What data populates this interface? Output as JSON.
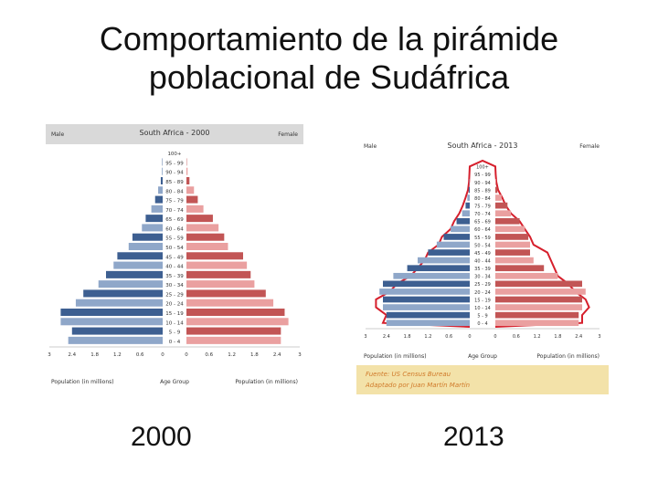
{
  "slide": {
    "title_line1": "Comportamiento de la pirámide",
    "title_line2": "poblacional de Sudáfrica",
    "caption_left": "2000",
    "caption_right": "2013"
  },
  "colors": {
    "male_light": "#8fa7c9",
    "male_dark": "#3d5f91",
    "female_light": "#eaa0a0",
    "female_dark": "#c25555",
    "outline": "#d61f2c",
    "header_bg": "#d9d9d9",
    "source_bg": "#f3e2a9",
    "source_text": "#d07a2a"
  },
  "chart_data": [
    {
      "type": "bar",
      "subtype": "population-pyramid",
      "title": "South Africa - 2000",
      "left_label": "Male",
      "right_label": "Female",
      "age_groups": [
        "0 - 4",
        "5 - 9",
        "10 - 14",
        "15 - 19",
        "20 - 24",
        "25 - 29",
        "30 - 34",
        "35 - 39",
        "40 - 44",
        "45 - 49",
        "50 - 54",
        "55 - 59",
        "60 - 64",
        "65 - 69",
        "70 - 74",
        "75 - 79",
        "80 - 84",
        "85 - 89",
        "90 - 94",
        "95 - 99",
        "100+"
      ],
      "series": [
        {
          "name": "Male",
          "values": [
            2.5,
            2.4,
            2.7,
            2.7,
            2.3,
            2.1,
            1.7,
            1.5,
            1.3,
            1.2,
            0.9,
            0.8,
            0.55,
            0.45,
            0.3,
            0.2,
            0.12,
            0.05,
            0.02,
            0.01,
            0.0
          ]
        },
        {
          "name": "Female",
          "values": [
            2.5,
            2.5,
            2.7,
            2.6,
            2.3,
            2.1,
            1.8,
            1.7,
            1.6,
            1.5,
            1.1,
            1.0,
            0.85,
            0.7,
            0.45,
            0.3,
            0.2,
            0.08,
            0.03,
            0.01,
            0.0
          ]
        }
      ],
      "xticks_left": [
        "3",
        "2.4",
        "1.8",
        "1.2",
        "0.6",
        "0"
      ],
      "xticks_right": [
        "0",
        "0.6",
        "1.2",
        "1.8",
        "2.4",
        "3"
      ],
      "xlim": [
        0,
        3
      ],
      "xlabel_left": "Population (in millions)",
      "xlabel_center": "Age Group",
      "xlabel_right": "Population (in millions)"
    },
    {
      "type": "bar",
      "subtype": "population-pyramid",
      "title": "South Africa - 2013",
      "left_label": "Male",
      "right_label": "Female",
      "age_groups": [
        "0 - 4",
        "5 - 9",
        "10 - 14",
        "15 - 19",
        "20 - 24",
        "25 - 29",
        "30 - 34",
        "35 - 39",
        "40 - 44",
        "45 - 49",
        "50 - 54",
        "55 - 59",
        "60 - 64",
        "65 - 69",
        "70 - 74",
        "75 - 79",
        "80 - 84",
        "85 - 89",
        "90 - 94",
        "95 - 99",
        "100+"
      ],
      "series": [
        {
          "name": "Male",
          "values": [
            2.4,
            2.4,
            2.5,
            2.5,
            2.6,
            2.5,
            2.2,
            1.8,
            1.5,
            1.2,
            0.95,
            0.75,
            0.55,
            0.38,
            0.22,
            0.12,
            0.07,
            0.03,
            0.01,
            0.0,
            0.0
          ]
        },
        {
          "name": "Female",
          "values": [
            2.4,
            2.4,
            2.5,
            2.5,
            2.6,
            2.5,
            1.8,
            1.4,
            1.1,
            1.0,
            1.0,
            0.95,
            0.85,
            0.7,
            0.45,
            0.35,
            0.18,
            0.06,
            0.02,
            0.0,
            0.0
          ]
        }
      ],
      "xticks_left": [
        "3",
        "2.4",
        "1.8",
        "1.2",
        "0.6",
        "0"
      ],
      "xticks_right": [
        "0",
        "0.6",
        "1.2",
        "1.8",
        "2.4",
        "3"
      ],
      "xlim": [
        0,
        3
      ],
      "xlabel_left": "Population (in millions)",
      "xlabel_center": "Age Group",
      "xlabel_right": "Population (in millions)",
      "source_line1": "Fuente: US Census Bureau",
      "source_line2": "Adaptado por Juan Martín Martín"
    }
  ]
}
